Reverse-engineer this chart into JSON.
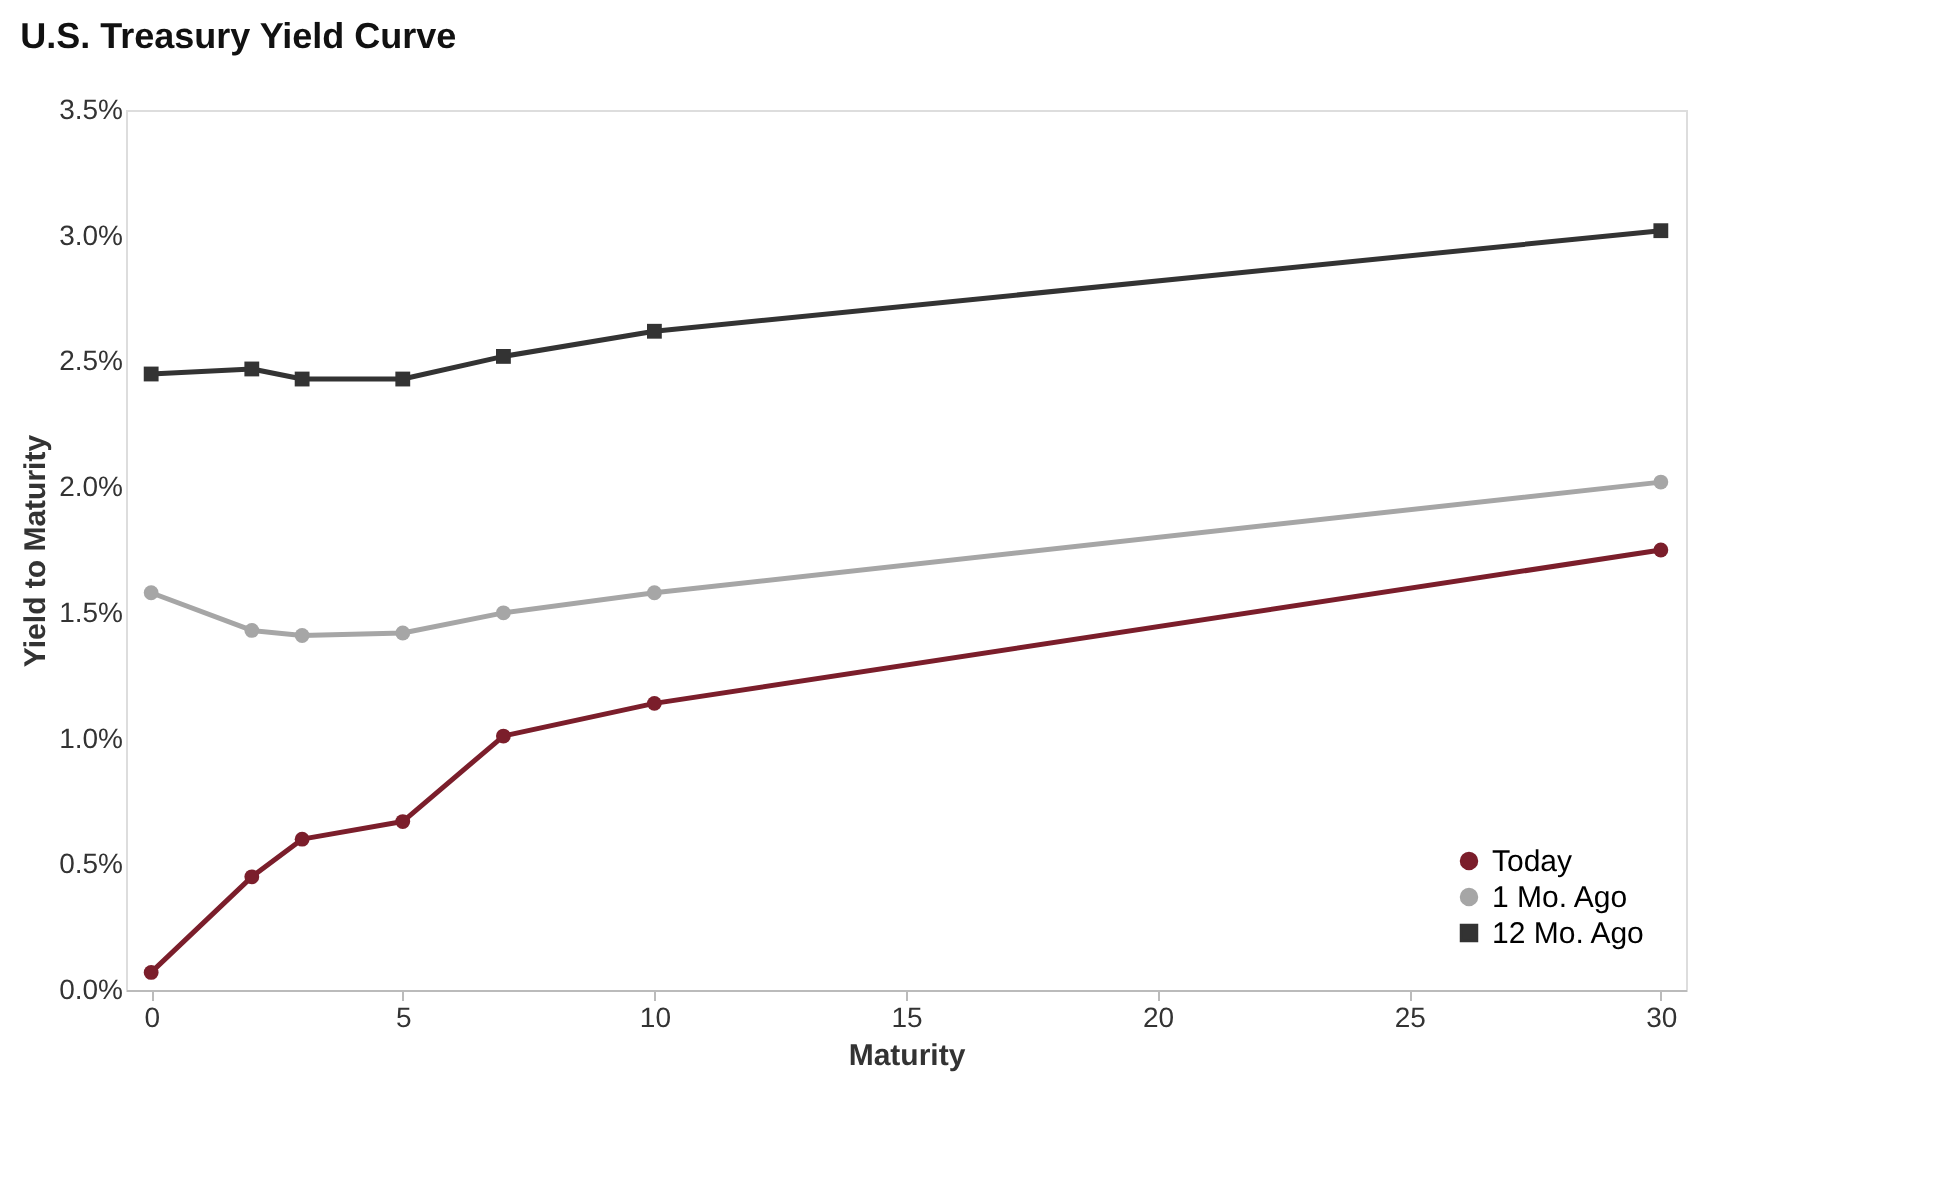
{
  "chart_data": {
    "type": "line",
    "title": "U.S. Treasury Yield Curve",
    "xlabel": "Maturity",
    "ylabel": "Yield to Maturity",
    "x": [
      0,
      2,
      3,
      5,
      7,
      10,
      30
    ],
    "series": [
      {
        "name": "Today",
        "color": "#7b1e2b",
        "marker": "circle",
        "values": [
          0.07,
          0.45,
          0.6,
          0.67,
          1.01,
          1.14,
          1.75
        ]
      },
      {
        "name": "1 Mo. Ago",
        "color": "#a6a6a6",
        "marker": "circle",
        "values": [
          1.58,
          1.43,
          1.41,
          1.42,
          1.5,
          1.58,
          2.02
        ]
      },
      {
        "name": "12 Mo. Ago",
        "color": "#333333",
        "marker": "square",
        "values": [
          2.45,
          2.47,
          2.43,
          2.43,
          2.52,
          2.62,
          3.02
        ]
      }
    ],
    "xlim": [
      -0.5,
      30.5
    ],
    "xticks": [
      0,
      5,
      10,
      15,
      20,
      25,
      30
    ],
    "ylim": [
      0,
      3.5
    ],
    "yticks": [
      {
        "value": 0,
        "label": "0.0%"
      },
      {
        "value": 0.5,
        "label": "0.5%"
      },
      {
        "value": 1,
        "label": "1.0%"
      },
      {
        "value": 1.5,
        "label": "1.5%"
      },
      {
        "value": 2,
        "label": "2.0%"
      },
      {
        "value": 2.5,
        "label": "2.5%"
      },
      {
        "value": 3,
        "label": "3.0%"
      },
      {
        "value": 3.5,
        "label": "3.5%"
      }
    ],
    "grid": false,
    "legend": "bottom right",
    "line_style": "solid"
  }
}
